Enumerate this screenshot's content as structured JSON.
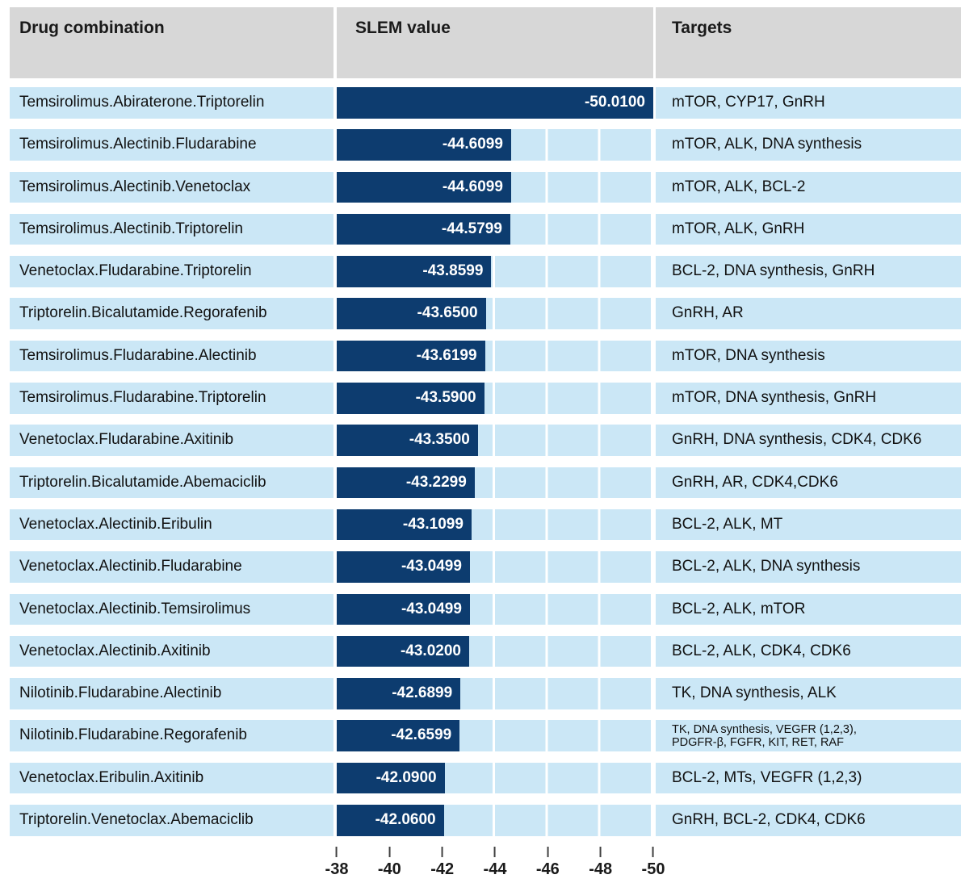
{
  "header": {
    "col1": "Drug combination",
    "col2": "SLEM value",
    "col3": "Targets"
  },
  "rows": [
    {
      "combo": "Temsirolimus.Abiraterone.Triptorelin",
      "slem": -50.01,
      "slem_label": "-50.0100",
      "targets": "mTOR, CYP17, GnRH"
    },
    {
      "combo": "Temsirolimus.Alectinib.Fludarabine",
      "slem": -44.6099,
      "slem_label": "-44.6099",
      "targets": "mTOR, ALK, DNA synthesis"
    },
    {
      "combo": "Temsirolimus.Alectinib.Venetoclax",
      "slem": -44.6099,
      "slem_label": "-44.6099",
      "targets": "mTOR, ALK, BCL-2"
    },
    {
      "combo": "Temsirolimus.Alectinib.Triptorelin",
      "slem": -44.5799,
      "slem_label": "-44.5799",
      "targets": "mTOR, ALK, GnRH"
    },
    {
      "combo": "Venetoclax.Fludarabine.Triptorelin",
      "slem": -43.8599,
      "slem_label": "-43.8599",
      "targets": "BCL-2, DNA synthesis, GnRH"
    },
    {
      "combo": "Triptorelin.Bicalutamide.Regorafenib",
      "slem": -43.65,
      "slem_label": "-43.6500",
      "targets": "GnRH, AR"
    },
    {
      "combo": "Temsirolimus.Fludarabine.Alectinib",
      "slem": -43.6199,
      "slem_label": "-43.6199",
      "targets": "mTOR, DNA synthesis"
    },
    {
      "combo": "Temsirolimus.Fludarabine.Triptorelin",
      "slem": -43.59,
      "slem_label": "-43.5900",
      "targets": "mTOR, DNA synthesis, GnRH"
    },
    {
      "combo": "Venetoclax.Fludarabine.Axitinib",
      "slem": -43.35,
      "slem_label": "-43.3500",
      "targets": "GnRH, DNA synthesis, CDK4, CDK6"
    },
    {
      "combo": "Triptorelin.Bicalutamide.Abemaciclib",
      "slem": -43.2299,
      "slem_label": "-43.2299",
      "targets": "GnRH, AR, CDK4,CDK6"
    },
    {
      "combo": "Venetoclax.Alectinib.Eribulin",
      "slem": -43.1099,
      "slem_label": "-43.1099",
      "targets": "BCL-2, ALK, MT"
    },
    {
      "combo": "Venetoclax.Alectinib.Fludarabine",
      "slem": -43.0499,
      "slem_label": "-43.0499",
      "targets": "BCL-2, ALK, DNA synthesis"
    },
    {
      "combo": "Venetoclax.Alectinib.Temsirolimus",
      "slem": -43.0499,
      "slem_label": "-43.0499",
      "targets": "BCL-2, ALK, mTOR"
    },
    {
      "combo": "Venetoclax.Alectinib.Axitinib",
      "slem": -43.02,
      "slem_label": "-43.0200",
      "targets": "BCL-2, ALK, CDK4, CDK6"
    },
    {
      "combo": "Nilotinib.Fludarabine.Alectinib",
      "slem": -42.6899,
      "slem_label": "-42.6899",
      "targets": "TK, DNA synthesis, ALK"
    },
    {
      "combo": "Nilotinib.Fludarabine.Regorafenib",
      "slem": -42.6599,
      "slem_label": "-42.6599",
      "targets": "TK, DNA synthesis, VEGFR (1,2,3),",
      "targets2": "PDGFR-β, FGFR, KIT, RET, RAF"
    },
    {
      "combo": "Venetoclax.Eribulin.Axitinib",
      "slem": -42.09,
      "slem_label": "-42.0900",
      "targets": "BCL-2, MTs, VEGFR (1,2,3)"
    },
    {
      "combo": "Triptorelin.Venetoclax.Abemaciclib",
      "slem": -42.06,
      "slem_label": "-42.0600",
      "targets": "GnRH, BCL-2, CDK4, CDK6"
    }
  ],
  "axis": {
    "ticks": [
      "-38",
      "-40",
      "-42",
      "-44",
      "-46",
      "-48",
      "-50"
    ]
  },
  "colors": {
    "bar": "#0d3c6f",
    "row_background": "#cbe7f6",
    "header_background": "#d7d7d7",
    "bar_value_text": "#ffffff",
    "gridline": "#ffffff"
  },
  "chart_data": {
    "type": "bar",
    "orientation": "horizontal",
    "title": "",
    "xlabel": "",
    "ylabel": "",
    "series_label": "SLEM value",
    "categories": [
      "Temsirolimus.Abiraterone.Triptorelin",
      "Temsirolimus.Alectinib.Fludarabine",
      "Temsirolimus.Alectinib.Venetoclax",
      "Temsirolimus.Alectinib.Triptorelin",
      "Venetoclax.Fludarabine.Triptorelin",
      "Triptorelin.Bicalutamide.Regorafenib",
      "Temsirolimus.Fludarabine.Alectinib",
      "Temsirolimus.Fludarabine.Triptorelin",
      "Venetoclax.Fludarabine.Axitinib",
      "Triptorelin.Bicalutamide.Abemaciclib",
      "Venetoclax.Alectinib.Eribulin",
      "Venetoclax.Alectinib.Fludarabine",
      "Venetoclax.Alectinib.Temsirolimus",
      "Venetoclax.Alectinib.Axitinib",
      "Nilotinib.Fludarabine.Alectinib",
      "Nilotinib.Fludarabine.Regorafenib",
      "Venetoclax.Eribulin.Axitinib",
      "Triptorelin.Venetoclax.Abemaciclib"
    ],
    "values": [
      -50.01,
      -44.6099,
      -44.6099,
      -44.5799,
      -43.8599,
      -43.65,
      -43.6199,
      -43.59,
      -43.35,
      -43.2299,
      -43.1099,
      -43.0499,
      -43.0499,
      -43.02,
      -42.6899,
      -42.6599,
      -42.09,
      -42.06
    ],
    "xlim": [
      -38,
      -50
    ],
    "axis_ticks": [
      -38,
      -40,
      -42,
      -44,
      -46,
      -48,
      -50
    ],
    "grid": true,
    "legend": false
  }
}
